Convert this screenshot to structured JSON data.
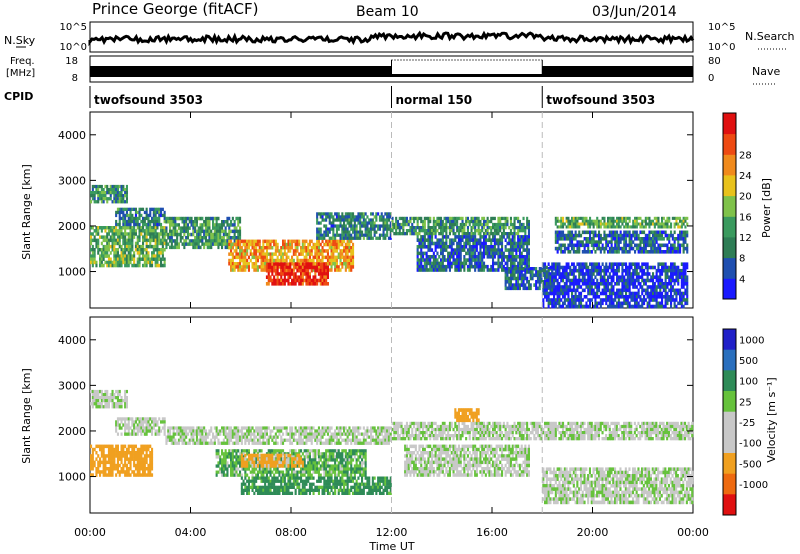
{
  "header": {
    "station": "Prince George (fitACF)",
    "beam": "Beam 10",
    "date": "03/Jun/2014"
  },
  "top_panels": {
    "nsky_label": "N.Sky",
    "nsearch_label": "N.Search",
    "nsky_ticks": [
      "10^5",
      "10^0"
    ],
    "nsearch_ticks": [
      "10^5",
      "10^0"
    ],
    "freq_label_1": "Freq.",
    "freq_label_2": "[MHz]",
    "freq_ticks": [
      "18",
      "8"
    ],
    "nave_label": "Nave",
    "nave_ticks": [
      "80",
      "0"
    ],
    "cpid_label": "CPID"
  },
  "cpid_segments": [
    {
      "label": "twofsound 3503",
      "start_hour": 0,
      "end_hour": 12
    },
    {
      "label": "normal 150",
      "start_hour": 12,
      "end_hour": 18
    },
    {
      "label": "twofsound 3503",
      "start_hour": 18,
      "end_hour": 24
    }
  ],
  "colors": {
    "power_scale": [
      "#1a1aff",
      "#1f4fb0",
      "#2e7d55",
      "#3a9a5e",
      "#7fc24a",
      "#e8c21c",
      "#f08a1c",
      "#ee4a12",
      "#e01010"
    ],
    "velocity_scale": [
      "#2020c8",
      "#2a6fbd",
      "#2e8b57",
      "#66c23c",
      "#c8c8c8",
      "#c8c8c8",
      "#f0a020",
      "#ee6a10",
      "#e01010"
    ],
    "ground_scatter": "#c0c0c0"
  },
  "chart_data": [
    {
      "type": "heatmap",
      "name": "power",
      "ylabel": "Slant Range [km]",
      "colorbar_label": "Power [dB]",
      "colorbar_ticks": [
        "4",
        "8",
        "12",
        "16",
        "20",
        "24",
        "28"
      ],
      "xlim": [
        0,
        24
      ],
      "ylim": [
        200,
        4500
      ],
      "yticks": [
        "1000",
        "2000",
        "3000",
        "4000"
      ],
      "xticks": [
        "00:00",
        "04:00",
        "08:00",
        "12:00",
        "16:00",
        "20:00",
        "00:00"
      ],
      "regions": [
        {
          "t0": 0.0,
          "t1": 3.0,
          "r0": 1100,
          "r1": 2000,
          "power": 14
        },
        {
          "t0": 0.0,
          "t1": 1.5,
          "r0": 2500,
          "r1": 2900,
          "power": 12
        },
        {
          "t0": 1.0,
          "t1": 3.0,
          "r0": 2000,
          "r1": 2400,
          "power": 10
        },
        {
          "t0": 3.0,
          "t1": 6.0,
          "r0": 1500,
          "r1": 2200,
          "power": 12
        },
        {
          "t0": 5.5,
          "t1": 10.5,
          "r0": 1000,
          "r1": 1700,
          "power": 22
        },
        {
          "t0": 7.0,
          "t1": 9.5,
          "r0": 700,
          "r1": 1200,
          "power": 28
        },
        {
          "t0": 9.0,
          "t1": 12.0,
          "r0": 1700,
          "r1": 2300,
          "power": 10
        },
        {
          "t0": 12.0,
          "t1": 17.5,
          "r0": 1800,
          "r1": 2200,
          "power": 12
        },
        {
          "t0": 13.0,
          "t1": 17.5,
          "r0": 1000,
          "r1": 1800,
          "power": 8
        },
        {
          "t0": 16.5,
          "t1": 18.5,
          "r0": 600,
          "r1": 1100,
          "power": 8
        },
        {
          "t0": 18.5,
          "t1": 23.8,
          "r0": 1950,
          "r1": 2200,
          "power": 14
        },
        {
          "t0": 18.5,
          "t1": 23.8,
          "r0": 1400,
          "r1": 1900,
          "power": 8
        },
        {
          "t0": 18.0,
          "t1": 23.8,
          "r0": 200,
          "r1": 1200,
          "power": 5
        }
      ]
    },
    {
      "type": "heatmap",
      "name": "velocity",
      "ylabel": "Slant Range [km]",
      "colorbar_label": "Velocity [m s⁻¹]",
      "colorbar_ticks": [
        "1000",
        "500",
        "100",
        "25",
        "-25",
        "-100",
        "-500",
        "-1000"
      ],
      "xlim": [
        0,
        24
      ],
      "ylim": [
        200,
        4500
      ],
      "yticks": [
        "1000",
        "2000",
        "3000",
        "4000"
      ],
      "xticks": [
        "00:00",
        "04:00",
        "08:00",
        "12:00",
        "16:00",
        "20:00",
        "00:00"
      ],
      "xlabel": "Time UT",
      "regions": [
        {
          "t0": 0.0,
          "t1": 2.5,
          "r0": 1000,
          "r1": 1700,
          "velocity": -300
        },
        {
          "t0": 0.0,
          "t1": 1.5,
          "r0": 2500,
          "r1": 2900,
          "velocity": 0
        },
        {
          "t0": 1.0,
          "t1": 3.0,
          "r0": 1900,
          "r1": 2300,
          "velocity": 0
        },
        {
          "t0": 3.0,
          "t1": 12.0,
          "r0": 1700,
          "r1": 2100,
          "velocity": 0
        },
        {
          "t0": 5.0,
          "t1": 11.0,
          "r0": 1000,
          "r1": 1600,
          "velocity": 80
        },
        {
          "t0": 6.0,
          "t1": 8.5,
          "r0": 1200,
          "r1": 1500,
          "velocity": -150
        },
        {
          "t0": 6.0,
          "t1": 12.0,
          "r0": 600,
          "r1": 1000,
          "velocity": 150
        },
        {
          "t0": 12.0,
          "t1": 24.0,
          "r0": 1800,
          "r1": 2200,
          "velocity": 0
        },
        {
          "t0": 12.5,
          "t1": 17.5,
          "r0": 1000,
          "r1": 1700,
          "velocity": 0
        },
        {
          "t0": 18.0,
          "t1": 24.0,
          "r0": 400,
          "r1": 1200,
          "velocity": 0
        },
        {
          "t0": 14.5,
          "t1": 15.5,
          "r0": 2200,
          "r1": 2500,
          "velocity": -200
        }
      ]
    }
  ]
}
